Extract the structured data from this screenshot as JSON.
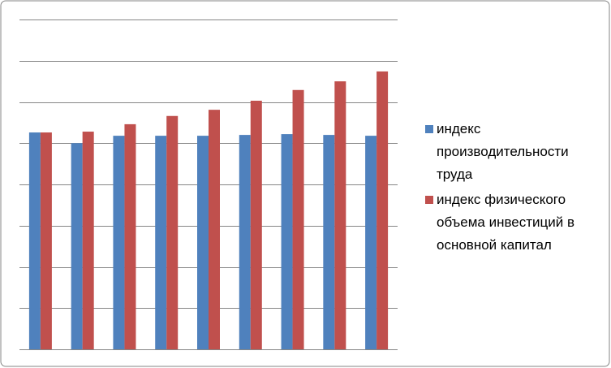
{
  "chart_data": {
    "type": "bar",
    "categories": [
      null,
      null,
      null,
      null,
      null,
      null,
      null,
      null,
      null
    ],
    "series": [
      {
        "name": "индекс производительности труда",
        "color": "#4f81bd",
        "values": [
          5.26,
          5.0,
          5.18,
          5.18,
          5.18,
          5.2,
          5.22,
          5.2,
          5.18
        ]
      },
      {
        "name": "индекс физического объема инвестиций в основной капитал",
        "color": "#c0504d",
        "values": [
          5.26,
          5.28,
          5.46,
          5.66,
          5.81,
          6.03,
          6.29,
          6.5,
          6.74
        ]
      }
    ],
    "ylim": [
      0,
      8
    ],
    "yticks": [
      0,
      1,
      2,
      3,
      4,
      5,
      6,
      7,
      8
    ],
    "grid": true,
    "legend": "right"
  }
}
